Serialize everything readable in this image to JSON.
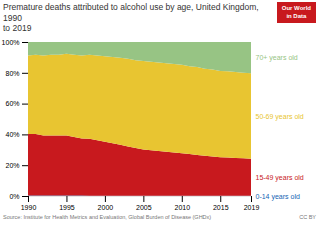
{
  "chart_data": {
    "type": "area",
    "title": "Premature deaths attributed to alcohol use by age, United Kingdom, 1990\nto 2019",
    "x": [
      1990,
      1991,
      1992,
      1993,
      1994,
      1995,
      1996,
      1997,
      1998,
      1999,
      2000,
      2001,
      2002,
      2003,
      2004,
      2005,
      2006,
      2007,
      2008,
      2009,
      2010,
      2011,
      2012,
      2013,
      2014,
      2015,
      2016,
      2017,
      2018,
      2019
    ],
    "series": [
      {
        "name": "0-14 years old",
        "color": "#1464b4",
        "values": [
          0.003,
          0.003,
          0.003,
          0.003,
          0.003,
          0.003,
          0.003,
          0.003,
          0.002,
          0.002,
          0.002,
          0.002,
          0.002,
          0.002,
          0.002,
          0.002,
          0.002,
          0.002,
          0.002,
          0.002,
          0.002,
          0.002,
          0.002,
          0.002,
          0.002,
          0.002,
          0.002,
          0.002,
          0.002,
          0.002
        ]
      },
      {
        "name": "15-49 years old",
        "color": "#c8191e",
        "values": [
          0.4,
          0.4,
          0.39,
          0.39,
          0.39,
          0.39,
          0.38,
          0.37,
          0.37,
          0.36,
          0.35,
          0.34,
          0.33,
          0.32,
          0.31,
          0.3,
          0.295,
          0.29,
          0.285,
          0.28,
          0.275,
          0.27,
          0.265,
          0.26,
          0.255,
          0.25,
          0.248,
          0.245,
          0.243,
          0.24
        ]
      },
      {
        "name": "50-69 years old",
        "color": "#e8c531",
        "values": [
          0.51,
          0.515,
          0.52,
          0.525,
          0.525,
          0.53,
          0.535,
          0.54,
          0.545,
          0.55,
          0.555,
          0.56,
          0.565,
          0.57,
          0.57,
          0.575,
          0.575,
          0.575,
          0.575,
          0.575,
          0.575,
          0.57,
          0.57,
          0.565,
          0.565,
          0.56,
          0.56,
          0.558,
          0.556,
          0.555
        ]
      },
      {
        "name": "70+ years old",
        "color": "#97c484",
        "values": [
          0.087,
          0.082,
          0.087,
          0.082,
          0.082,
          0.077,
          0.082,
          0.087,
          0.083,
          0.088,
          0.093,
          0.098,
          0.103,
          0.108,
          0.118,
          0.123,
          0.128,
          0.133,
          0.138,
          0.143,
          0.148,
          0.158,
          0.163,
          0.173,
          0.178,
          0.188,
          0.19,
          0.195,
          0.199,
          0.203
        ]
      }
    ],
    "xlim": [
      1990,
      2019
    ],
    "xticks": [
      1990,
      1995,
      2000,
      2005,
      2010,
      2015,
      2019
    ],
    "ylim": [
      0,
      1
    ],
    "yticks": [
      {
        "value": 0,
        "label": "0%"
      },
      {
        "value": 0.2,
        "label": "20%"
      },
      {
        "value": 0.4,
        "label": "40%"
      },
      {
        "value": 0.6,
        "label": "60%"
      },
      {
        "value": 0.8,
        "label": "80%"
      },
      {
        "value": 1,
        "label": "100%"
      }
    ],
    "grid": true,
    "stacked": true,
    "annotations": [
      "Source: Institute for Health Metrics and Evaluation, Global Burden of Disease (GHDx)",
      "CC BY",
      "Our World\nin Data"
    ]
  }
}
